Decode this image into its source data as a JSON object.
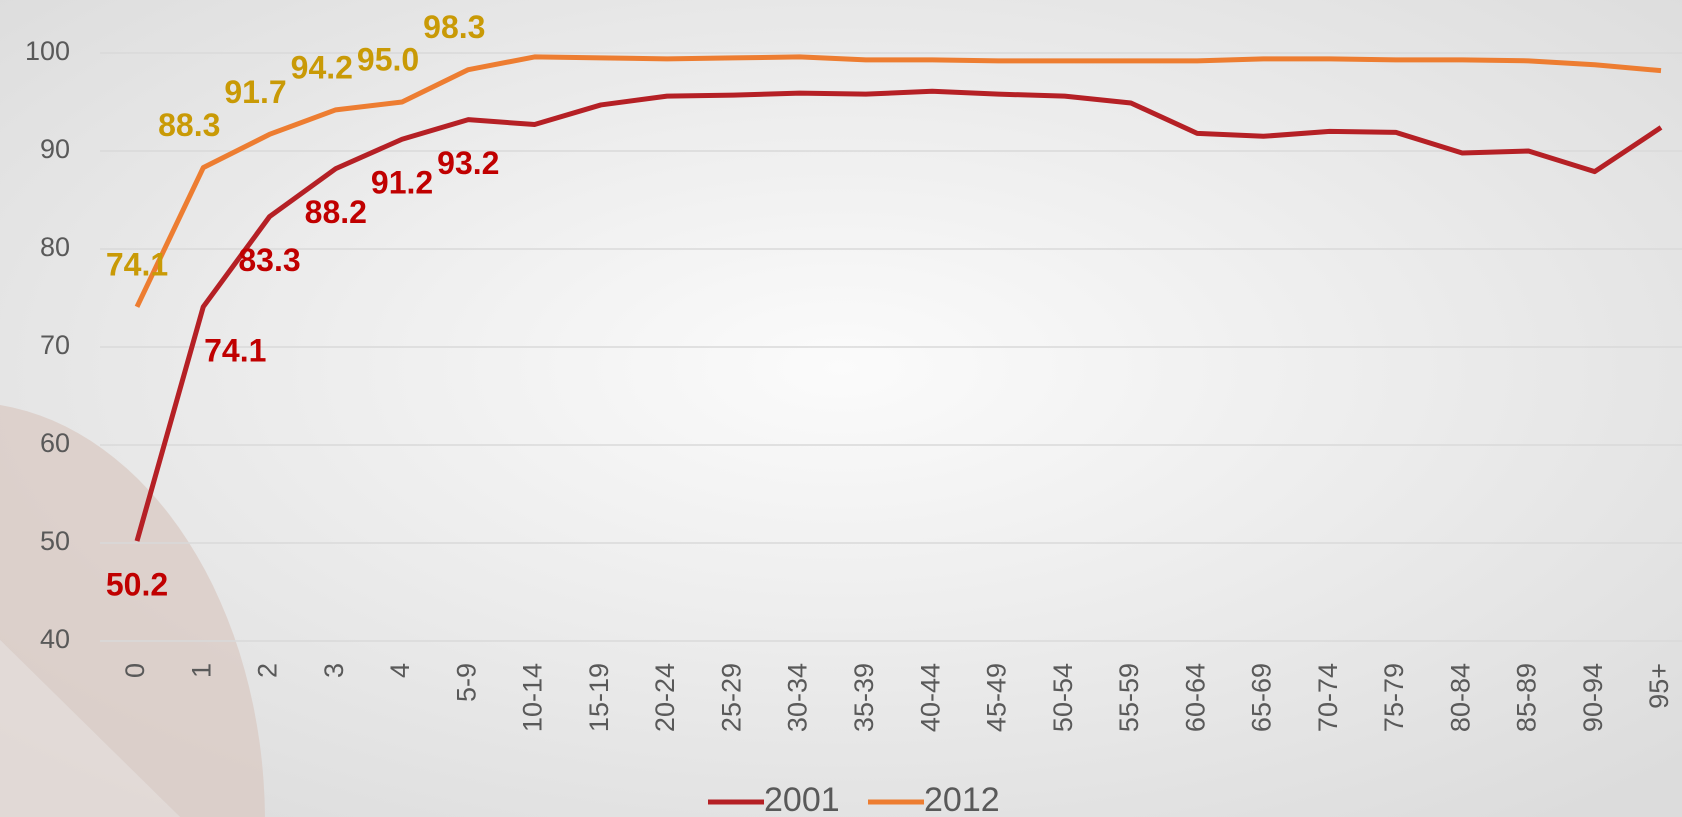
{
  "chart_data": {
    "type": "line",
    "categories": [
      "0",
      "1",
      "2",
      "3",
      "4",
      "5-9",
      "10-14",
      "15-19",
      "20-24",
      "25-29",
      "30-34",
      "35-39",
      "40-44",
      "45-49",
      "50-54",
      "55-59",
      "60-64",
      "65-69",
      "70-74",
      "75-79",
      "80-84",
      "85-89",
      "90-94",
      "95+"
    ],
    "series": [
      {
        "name": "2001",
        "color": "#b52025",
        "label_color": "#c00000",
        "values": [
          50.2,
          74.1,
          83.3,
          88.2,
          91.2,
          93.2,
          92.7,
          94.7,
          95.6,
          95.7,
          95.9,
          95.8,
          96.1,
          95.8,
          95.6,
          94.9,
          91.8,
          91.5,
          92.0,
          91.9,
          89.8,
          90.0,
          87.9,
          92.4
        ],
        "value_labels": [
          "50.2",
          "74.1",
          "83.3",
          "88.2",
          "91.2",
          "93.2",
          null,
          null,
          null,
          null,
          null,
          null,
          null,
          null,
          null,
          null,
          null,
          null,
          null,
          null,
          null,
          null,
          null,
          null
        ]
      },
      {
        "name": "2012",
        "color": "#ed7d31",
        "label_color": "#c99a06",
        "values": [
          74.1,
          88.3,
          91.7,
          94.2,
          95.0,
          98.3,
          99.6,
          99.5,
          99.4,
          99.5,
          99.6,
          99.3,
          99.3,
          99.2,
          99.2,
          99.2,
          99.2,
          99.4,
          99.4,
          99.3,
          99.3,
          99.2,
          98.8,
          98.2
        ],
        "value_labels": [
          "74.1",
          "88.3",
          "91.7",
          "94.2",
          "95.0",
          "98.3",
          null,
          null,
          null,
          null,
          null,
          null,
          null,
          null,
          null,
          null,
          null,
          null,
          null,
          null,
          null,
          null,
          null,
          null
        ]
      }
    ],
    "ylim": [
      40,
      100
    ],
    "yticks": [
      40,
      50,
      60,
      70,
      80,
      90,
      100
    ],
    "grid": true,
    "legend": "bottom"
  }
}
